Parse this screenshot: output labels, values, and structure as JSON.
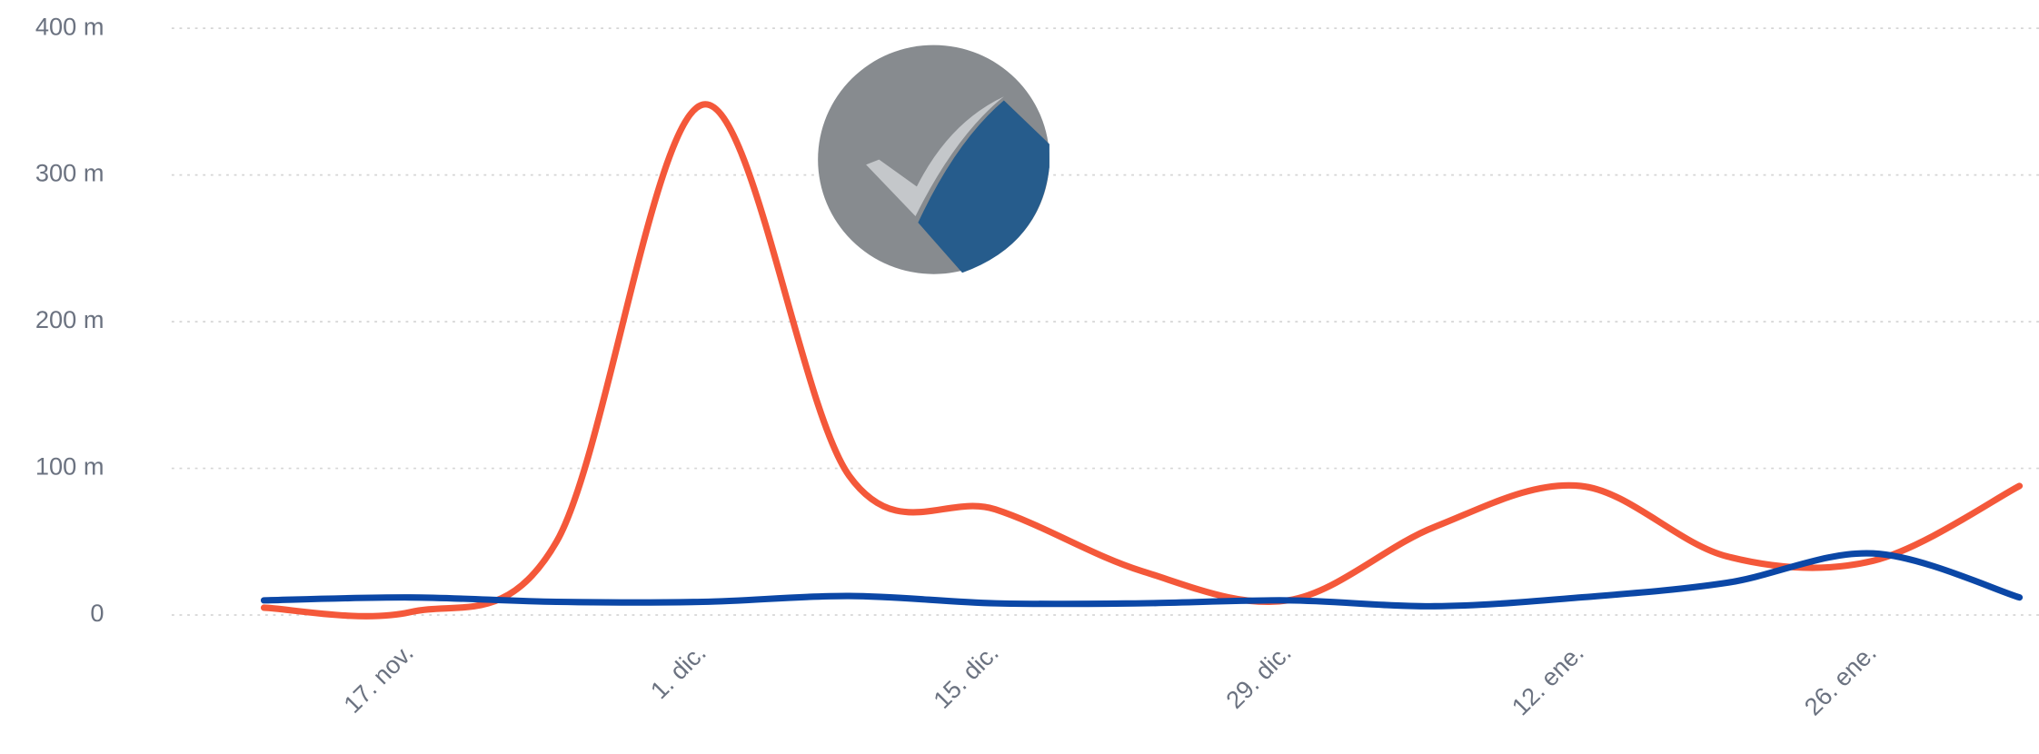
{
  "chart_data": {
    "type": "line",
    "categories": [
      null,
      "17. nov.",
      null,
      "1. dic.",
      null,
      "15. dic.",
      null,
      "29. dic.",
      null,
      "12. ene.",
      null,
      "26. ene.",
      null
    ],
    "series": [
      {
        "color": "#f4583a",
        "values": [
          5,
          2,
          50,
          348,
          95,
          72,
          30,
          10,
          60,
          88,
          40,
          37,
          88
        ]
      },
      {
        "color": "#0b47a6",
        "values": [
          10,
          12,
          9,
          9,
          13,
          8,
          8,
          10,
          6,
          12,
          22,
          42,
          12
        ]
      }
    ],
    "ylim": [
      0,
      400
    ],
    "yticks": [
      0,
      {
        "value": 100,
        "label": "100 m"
      },
      {
        "value": 200,
        "label": "200 m"
      },
      {
        "value": 300,
        "label": "300 m"
      },
      {
        "value": 400,
        "label": "400 m"
      }
    ],
    "grid": true
  }
}
